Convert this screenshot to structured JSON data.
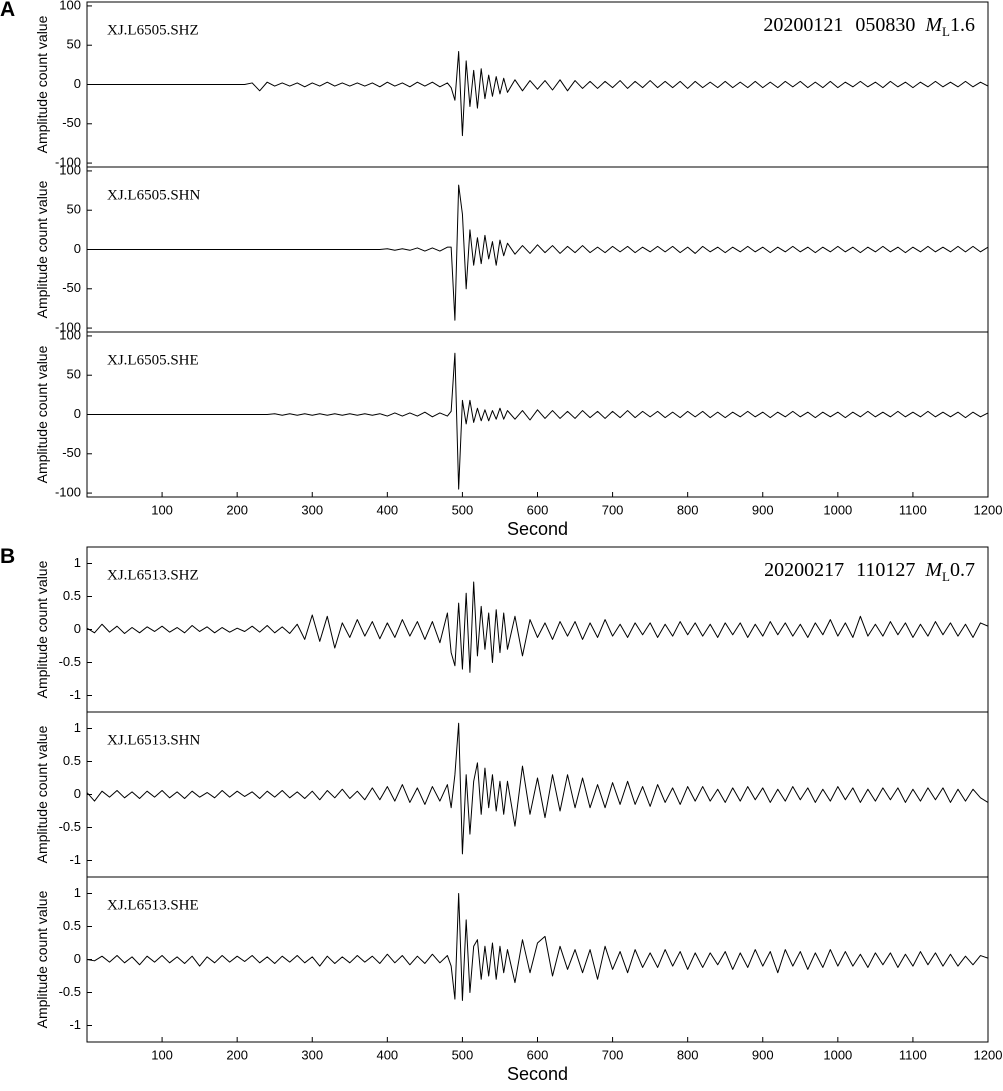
{
  "chart_data": [
    {
      "type": "line",
      "panel": "A",
      "xlabel": "Second",
      "ylabel": "Amplitude count value",
      "annotation": {
        "date": "20200121",
        "time": "050830",
        "magnitude_symbol": "M",
        "magnitude_subscript": "L",
        "magnitude": "1.6"
      },
      "xlim": [
        0,
        1200
      ],
      "xticks": [
        100,
        200,
        300,
        400,
        500,
        600,
        700,
        800,
        900,
        1000,
        1100,
        1200
      ],
      "ylim": [
        -105,
        105
      ],
      "yticks": [
        -100,
        -50,
        0,
        50,
        100
      ],
      "color": "#000000",
      "x": [
        0,
        10,
        20,
        30,
        40,
        50,
        60,
        70,
        80,
        90,
        100,
        110,
        120,
        130,
        140,
        150,
        160,
        170,
        180,
        190,
        200,
        210,
        220,
        230,
        240,
        250,
        260,
        270,
        280,
        290,
        300,
        310,
        320,
        330,
        340,
        350,
        360,
        370,
        380,
        390,
        400,
        410,
        420,
        430,
        440,
        450,
        460,
        470,
        480,
        485,
        490,
        495,
        500,
        505,
        510,
        515,
        520,
        525,
        530,
        535,
        540,
        545,
        550,
        555,
        560,
        570,
        580,
        590,
        600,
        610,
        620,
        630,
        640,
        650,
        660,
        670,
        680,
        690,
        700,
        710,
        720,
        730,
        740,
        750,
        760,
        770,
        780,
        790,
        800,
        810,
        820,
        830,
        840,
        850,
        860,
        870,
        880,
        890,
        900,
        910,
        920,
        930,
        940,
        950,
        960,
        970,
        980,
        990,
        1000,
        1010,
        1020,
        1030,
        1040,
        1050,
        1060,
        1070,
        1080,
        1090,
        1100,
        1110,
        1120,
        1130,
        1140,
        1150,
        1160,
        1170,
        1180,
        1190,
        1200
      ],
      "series": [
        {
          "name": "XJ.L6505.SHZ",
          "values": [
            0,
            0,
            0,
            0,
            0,
            0,
            0,
            0,
            0,
            0,
            0,
            0,
            0,
            0,
            0,
            0,
            0,
            0,
            0,
            0,
            0,
            0,
            2,
            -8,
            3,
            -2,
            2,
            -2,
            2,
            -3,
            2,
            -2,
            3,
            -2,
            2,
            -2,
            2,
            -2,
            2,
            -3,
            3,
            -2,
            2,
            -3,
            3,
            -2,
            3,
            -3,
            2,
            -4,
            -20,
            42,
            -65,
            30,
            -28,
            18,
            -30,
            20,
            -18,
            12,
            -15,
            10,
            -12,
            8,
            -10,
            6,
            -8,
            5,
            -6,
            5,
            -7,
            6,
            -8,
            5,
            -5,
            4,
            -5,
            4,
            -4,
            5,
            -5,
            4,
            -4,
            5,
            -4,
            4,
            -4,
            4,
            -5,
            4,
            -4,
            3,
            -4,
            4,
            -4,
            3,
            -4,
            4,
            -4,
            3,
            -4,
            4,
            -3,
            4,
            -4,
            3,
            -4,
            4,
            -4,
            3,
            -3,
            4,
            -3,
            3,
            -4,
            4,
            -3,
            3,
            -4,
            3,
            -3,
            4,
            -3,
            3,
            -3,
            4,
            -3,
            3,
            -2
          ]
        },
        {
          "name": "XJ.L6505.SHN",
          "values": [
            0,
            0,
            0,
            0,
            0,
            0,
            0,
            0,
            0,
            0,
            0,
            0,
            0,
            0,
            0,
            0,
            0,
            0,
            0,
            0,
            0,
            0,
            0,
            0,
            0,
            0,
            0,
            0,
            0,
            0,
            0,
            0,
            0,
            0,
            0,
            0,
            0,
            0,
            0,
            0,
            1,
            -1,
            1,
            -1,
            2,
            -2,
            2,
            -2,
            3,
            3,
            -90,
            82,
            45,
            -50,
            25,
            -20,
            15,
            -18,
            18,
            -12,
            10,
            -20,
            12,
            -8,
            8,
            -6,
            5,
            -5,
            6,
            -4,
            5,
            -5,
            4,
            -4,
            5,
            -4,
            3,
            -4,
            4,
            -3,
            4,
            -4,
            3,
            -3,
            4,
            -3,
            4,
            -4,
            3,
            -5,
            4,
            -3,
            3,
            -4,
            3,
            -3,
            4,
            -3,
            3,
            -4,
            3,
            -3,
            4,
            -3,
            3,
            -4,
            3,
            -3,
            4,
            -3,
            3,
            -4,
            3,
            -3,
            4,
            -3,
            3,
            -4,
            3,
            -3,
            4,
            -3,
            3,
            -3,
            4,
            -3,
            4,
            -3,
            3
          ]
        },
        {
          "name": "XJ.L6505.SHE",
          "values": [
            0,
            0,
            0,
            0,
            0,
            0,
            0,
            0,
            0,
            0,
            0,
            0,
            0,
            0,
            0,
            0,
            0,
            0,
            0,
            0,
            0,
            0,
            0,
            0,
            0,
            1,
            -1,
            1,
            -1,
            1,
            -1,
            1,
            -1,
            1,
            -1,
            1,
            -1,
            1,
            -1,
            1,
            -2,
            2,
            -2,
            2,
            -2,
            3,
            -3,
            2,
            -2,
            4,
            78,
            -95,
            18,
            -12,
            18,
            -10,
            8,
            -8,
            6,
            -8,
            5,
            -6,
            8,
            -6,
            5,
            -6,
            5,
            -7,
            6,
            -5,
            5,
            -5,
            4,
            -5,
            5,
            -4,
            4,
            -5,
            4,
            -4,
            5,
            -4,
            4,
            -3,
            4,
            -4,
            3,
            -4,
            4,
            -3,
            4,
            -4,
            3,
            -4,
            3,
            -3,
            4,
            -3,
            3,
            -4,
            3,
            -3,
            4,
            -3,
            3,
            -4,
            3,
            -3,
            3,
            -4,
            3,
            -3,
            4,
            -3,
            3,
            -3,
            4,
            -3,
            3,
            -3,
            4,
            -3,
            3,
            -3,
            3,
            -4,
            3,
            -3,
            2
          ]
        }
      ]
    },
    {
      "type": "line",
      "panel": "B",
      "xlabel": "Second",
      "ylabel": "Amplitude count value",
      "annotation": {
        "date": "20200217",
        "time": "110127",
        "magnitude_symbol": "M",
        "magnitude_subscript": "L",
        "magnitude": "0.7"
      },
      "xlim": [
        0,
        1200
      ],
      "xticks": [
        100,
        200,
        300,
        400,
        500,
        600,
        700,
        800,
        900,
        1000,
        1100,
        1200
      ],
      "ylim": [
        -1.25,
        1.25
      ],
      "yticks": [
        -1,
        -0.5,
        0,
        0.5,
        1
      ],
      "color": "#000000",
      "x": [
        0,
        10,
        20,
        30,
        40,
        50,
        60,
        70,
        80,
        90,
        100,
        110,
        120,
        130,
        140,
        150,
        160,
        170,
        180,
        190,
        200,
        210,
        220,
        230,
        240,
        250,
        260,
        270,
        280,
        290,
        300,
        310,
        320,
        330,
        340,
        350,
        360,
        370,
        380,
        390,
        400,
        410,
        420,
        430,
        440,
        450,
        460,
        470,
        480,
        485,
        490,
        495,
        500,
        505,
        510,
        515,
        520,
        525,
        530,
        535,
        540,
        545,
        550,
        555,
        560,
        570,
        580,
        590,
        600,
        610,
        620,
        630,
        640,
        650,
        660,
        670,
        680,
        690,
        700,
        710,
        720,
        730,
        740,
        750,
        760,
        770,
        780,
        790,
        800,
        810,
        820,
        830,
        840,
        850,
        860,
        870,
        880,
        890,
        900,
        910,
        920,
        930,
        940,
        950,
        960,
        970,
        980,
        990,
        1000,
        1010,
        1020,
        1030,
        1040,
        1050,
        1060,
        1070,
        1080,
        1090,
        1100,
        1110,
        1120,
        1130,
        1140,
        1150,
        1160,
        1170,
        1180,
        1190,
        1200
      ],
      "series": [
        {
          "name": "XJ.L6513.SHZ",
          "values": [
            0.02,
            -0.05,
            0.08,
            -0.04,
            0.05,
            -0.06,
            0.03,
            -0.05,
            0.04,
            -0.03,
            0.05,
            -0.04,
            0.03,
            -0.05,
            0.06,
            -0.03,
            0.04,
            -0.05,
            0.03,
            -0.04,
            0.02,
            -0.03,
            0.05,
            -0.04,
            0.06,
            -0.05,
            0.04,
            -0.06,
            0.08,
            -0.15,
            0.22,
            -0.18,
            0.2,
            -0.28,
            0.1,
            -0.12,
            0.15,
            -0.1,
            0.12,
            -0.14,
            0.1,
            -0.12,
            0.15,
            -0.1,
            0.12,
            -0.15,
            0.12,
            -0.2,
            0.25,
            -0.35,
            -0.55,
            0.4,
            -0.6,
            0.55,
            -0.65,
            0.72,
            -0.4,
            0.35,
            -0.3,
            0.25,
            -0.5,
            0.3,
            -0.35,
            0.25,
            -0.3,
            0.2,
            -0.4,
            0.15,
            -0.12,
            0.1,
            -0.15,
            0.12,
            -0.1,
            0.12,
            -0.15,
            0.1,
            -0.12,
            0.15,
            -0.1,
            0.08,
            -0.12,
            0.1,
            -0.08,
            0.1,
            -0.12,
            0.08,
            -0.1,
            0.12,
            -0.08,
            0.1,
            -0.1,
            0.08,
            -0.12,
            0.1,
            -0.08,
            0.1,
            -0.12,
            0.08,
            -0.1,
            0.12,
            -0.08,
            0.1,
            -0.1,
            0.08,
            -0.12,
            0.1,
            -0.08,
            0.15,
            -0.1,
            0.1,
            -0.12,
            0.2,
            -0.1,
            0.08,
            -0.1,
            0.12,
            -0.08,
            0.1,
            -0.12,
            0.08,
            -0.1,
            0.12,
            -0.08,
            0.1,
            -0.1,
            0.08,
            -0.12,
            0.1,
            0.05
          ]
        },
        {
          "name": "XJ.L6513.SHN",
          "values": [
            0.03,
            -0.1,
            0.05,
            -0.04,
            0.06,
            -0.05,
            0.04,
            -0.06,
            0.05,
            -0.04,
            0.06,
            -0.05,
            0.04,
            -0.06,
            0.05,
            -0.04,
            0.03,
            -0.05,
            0.06,
            -0.04,
            0.05,
            -0.03,
            0.04,
            -0.06,
            0.05,
            -0.04,
            0.06,
            -0.05,
            0.04,
            -0.06,
            0.05,
            -0.08,
            0.06,
            -0.05,
            0.08,
            -0.06,
            0.05,
            -0.08,
            0.1,
            -0.08,
            0.12,
            -0.1,
            0.15,
            -0.12,
            0.1,
            -0.15,
            0.12,
            -0.1,
            0.15,
            -0.2,
            0.3,
            1.08,
            -0.9,
            0.3,
            -0.6,
            0.2,
            0.48,
            -0.3,
            0.4,
            -0.2,
            0.3,
            -0.25,
            0.2,
            -0.3,
            0.2,
            -0.48,
            0.43,
            -0.3,
            0.25,
            -0.35,
            0.3,
            -0.25,
            0.3,
            -0.2,
            0.25,
            -0.2,
            0.15,
            -0.2,
            0.18,
            -0.15,
            0.2,
            -0.15,
            0.12,
            -0.18,
            0.15,
            -0.12,
            0.1,
            -0.15,
            0.12,
            -0.1,
            0.12,
            -0.1,
            0.08,
            -0.12,
            0.1,
            -0.1,
            0.12,
            -0.08,
            0.1,
            -0.12,
            0.08,
            -0.1,
            0.12,
            -0.08,
            0.1,
            -0.12,
            0.08,
            -0.1,
            0.12,
            -0.08,
            0.1,
            -0.12,
            0.08,
            -0.1,
            0.1,
            -0.08,
            0.1,
            -0.12,
            0.08,
            -0.1,
            0.1,
            -0.08,
            0.1,
            -0.12,
            0.08,
            -0.1,
            0.08,
            -0.05,
            -0.12
          ]
        },
        {
          "name": "XJ.L6513.SHE",
          "values": [
            0.0,
            -0.02,
            0.05,
            -0.04,
            0.06,
            -0.05,
            0.04,
            -0.08,
            0.05,
            -0.04,
            0.06,
            -0.05,
            0.04,
            -0.06,
            0.05,
            -0.1,
            0.04,
            -0.05,
            0.06,
            -0.04,
            0.05,
            -0.03,
            0.06,
            -0.05,
            0.04,
            -0.06,
            0.05,
            -0.04,
            0.06,
            -0.05,
            0.04,
            -0.1,
            0.05,
            -0.06,
            0.04,
            -0.05,
            0.06,
            -0.04,
            0.05,
            -0.06,
            0.08,
            -0.05,
            0.06,
            -0.08,
            0.05,
            -0.06,
            0.08,
            -0.05,
            0.06,
            -0.1,
            -0.6,
            1.0,
            -0.62,
            0.6,
            -0.5,
            0.2,
            0.3,
            -0.3,
            0.2,
            -0.25,
            0.25,
            -0.3,
            0.2,
            -0.2,
            0.15,
            -0.35,
            0.3,
            -0.2,
            0.25,
            0.35,
            -0.25,
            0.2,
            -0.15,
            0.15,
            -0.2,
            0.15,
            -0.3,
            0.2,
            -0.15,
            0.12,
            -0.2,
            0.15,
            -0.12,
            0.1,
            -0.12,
            0.15,
            -0.1,
            0.12,
            -0.15,
            0.1,
            -0.12,
            0.1,
            -0.08,
            0.12,
            -0.15,
            0.1,
            -0.12,
            0.15,
            -0.1,
            0.12,
            -0.2,
            0.15,
            -0.1,
            0.12,
            -0.15,
            0.1,
            -0.12,
            0.15,
            -0.1,
            0.12,
            -0.1,
            0.08,
            -0.12,
            0.1,
            -0.08,
            0.1,
            -0.12,
            0.08,
            -0.1,
            0.12,
            -0.08,
            0.1,
            -0.1,
            0.08,
            -0.1,
            0.05,
            -0.08,
            0.06,
            0.02
          ]
        }
      ]
    }
  ]
}
